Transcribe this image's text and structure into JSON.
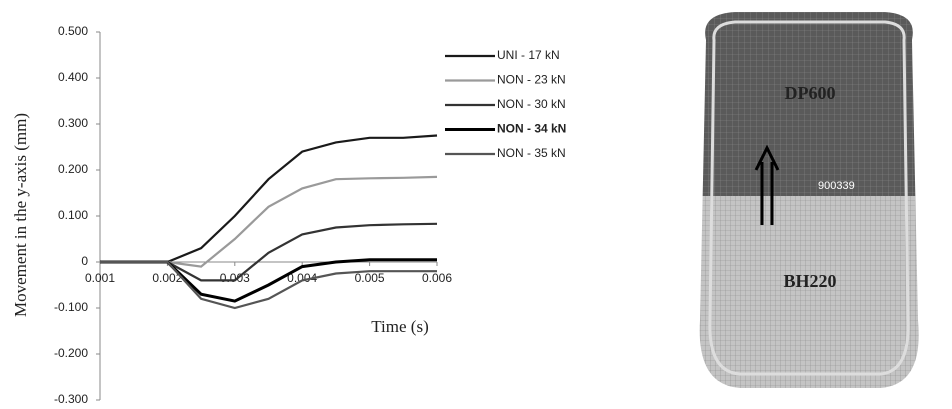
{
  "chart_data": {
    "type": "line",
    "ylabel": "Movement in the y-axis (mm)",
    "xlabel": "Time (s)",
    "x": [
      0.001,
      0.0015,
      0.002,
      0.0025,
      0.003,
      0.0035,
      0.004,
      0.0045,
      0.005,
      0.0055,
      0.006
    ],
    "xlim": [
      0.001,
      0.006
    ],
    "xticks": [
      0.001,
      0.002,
      0.003,
      0.004,
      0.005,
      0.006
    ],
    "ylim": [
      -0.3,
      0.5
    ],
    "yticks": [
      {
        "value": 0.5,
        "label": "0.500"
      },
      {
        "value": 0.4,
        "label": "0.400"
      },
      {
        "value": 0.3,
        "label": "0.300"
      },
      {
        "value": 0.2,
        "label": "0.200"
      },
      {
        "value": 0.1,
        "label": "0.100"
      },
      0,
      {
        "value": -0.1,
        "label": "-0.100"
      },
      {
        "value": -0.2,
        "label": "-0.200"
      },
      {
        "value": -0.3,
        "label": "-0.300"
      }
    ],
    "grid": false,
    "legend": "right",
    "series": [
      {
        "name": "UNI - 17 kN",
        "color": "#1a1a1a",
        "values": [
          0,
          0,
          0,
          0.03,
          0.1,
          0.18,
          0.24,
          0.26,
          0.27,
          0.27,
          0.275
        ]
      },
      {
        "name": "NON - 23 kN",
        "color": "#9a9a9a",
        "values": [
          0,
          0,
          0,
          -0.01,
          0.05,
          0.12,
          0.16,
          0.18,
          0.182,
          0.183,
          0.185
        ]
      },
      {
        "name": "NON - 30 kN",
        "color": "#333333",
        "values": [
          0,
          0,
          0,
          -0.04,
          -0.04,
          0.02,
          0.06,
          0.075,
          0.08,
          0.082,
          0.083
        ]
      },
      {
        "name": "NON - 34 kN",
        "color": "#000000",
        "values": [
          0,
          0,
          0,
          -0.07,
          -0.085,
          -0.05,
          -0.01,
          0,
          0.005,
          0.005,
          0.005
        ]
      },
      {
        "name": "NON - 35 kN",
        "color": "#555555",
        "values": [
          0,
          0,
          0,
          -0.08,
          -0.1,
          -0.08,
          -0.04,
          -0.025,
          -0.02,
          -0.02,
          -0.02
        ]
      }
    ]
  },
  "mesh": {
    "top_label": "DP600",
    "bottom_label": "BH220",
    "node_id": "900339"
  }
}
